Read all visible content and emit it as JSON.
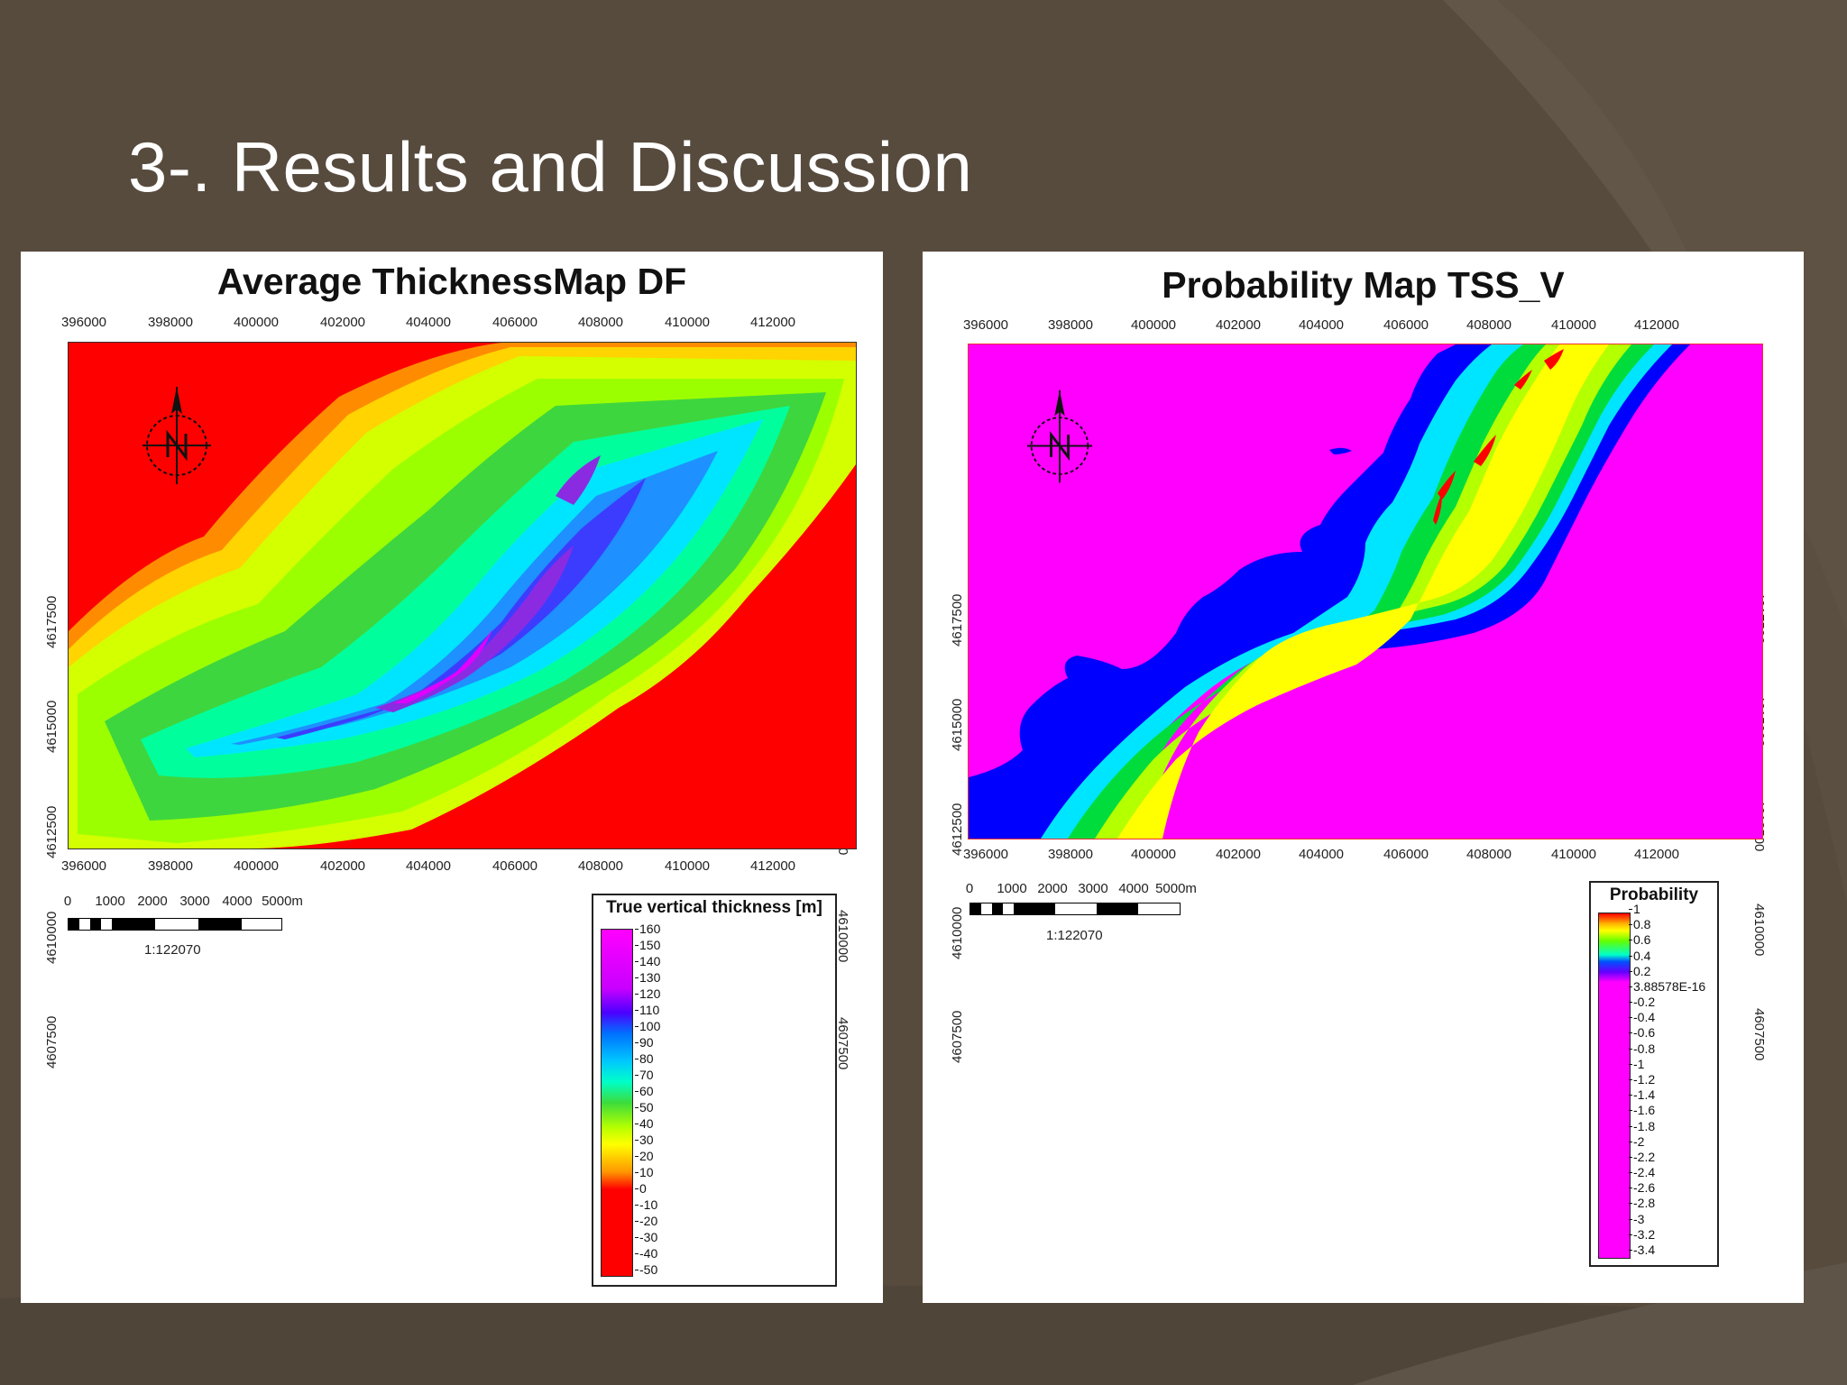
{
  "slide": {
    "title": "3-. Results and Discussion",
    "background_color": "#574b3e"
  },
  "left_map": {
    "title": "Average ThicknessMap DF",
    "x_ticks": [
      "396000",
      "398000",
      "400000",
      "402000",
      "404000",
      "406000",
      "408000",
      "410000",
      "412000"
    ],
    "y_ticks": [
      "4617500",
      "4615000",
      "4612500",
      "4610000",
      "4607500"
    ],
    "north_arrow_icon": "north-arrow-icon",
    "scale": {
      "labels": [
        "0",
        "1000",
        "2000",
        "3000",
        "4000",
        "5000m"
      ],
      "ratio": "1:122070"
    },
    "legend": {
      "title": "True vertical thickness [m]",
      "ticks": [
        "160",
        "150",
        "140",
        "130",
        "120",
        "110",
        "100",
        "90",
        "80",
        "70",
        "60",
        "50",
        "40",
        "30",
        "20",
        "10",
        "0",
        "-10",
        "-20",
        "-30",
        "-40",
        "-50"
      ]
    }
  },
  "right_map": {
    "title": "Probability Map TSS_V",
    "x_ticks": [
      "396000",
      "398000",
      "400000",
      "402000",
      "404000",
      "406000",
      "408000",
      "410000",
      "412000"
    ],
    "y_ticks": [
      "4617500",
      "4615000",
      "4612500",
      "4610000",
      "4607500"
    ],
    "north_arrow_icon": "north-arrow-icon",
    "scale": {
      "labels": [
        "0",
        "1000",
        "2000",
        "3000",
        "4000",
        "5000m"
      ],
      "ratio": "1:122070"
    },
    "legend": {
      "title": "Probability",
      "ticks": [
        "1",
        "0.8",
        "0.6",
        "0.4",
        "0.2",
        "3.88578E-16",
        "-0.2",
        "-0.4",
        "-0.6",
        "-0.8",
        "-1",
        "-1.2",
        "-1.4",
        "-1.6",
        "-1.8",
        "-2",
        "-2.2",
        "-2.4",
        "-2.6",
        "-2.8",
        "-3",
        "-3.2",
        "-3.4"
      ]
    }
  }
}
